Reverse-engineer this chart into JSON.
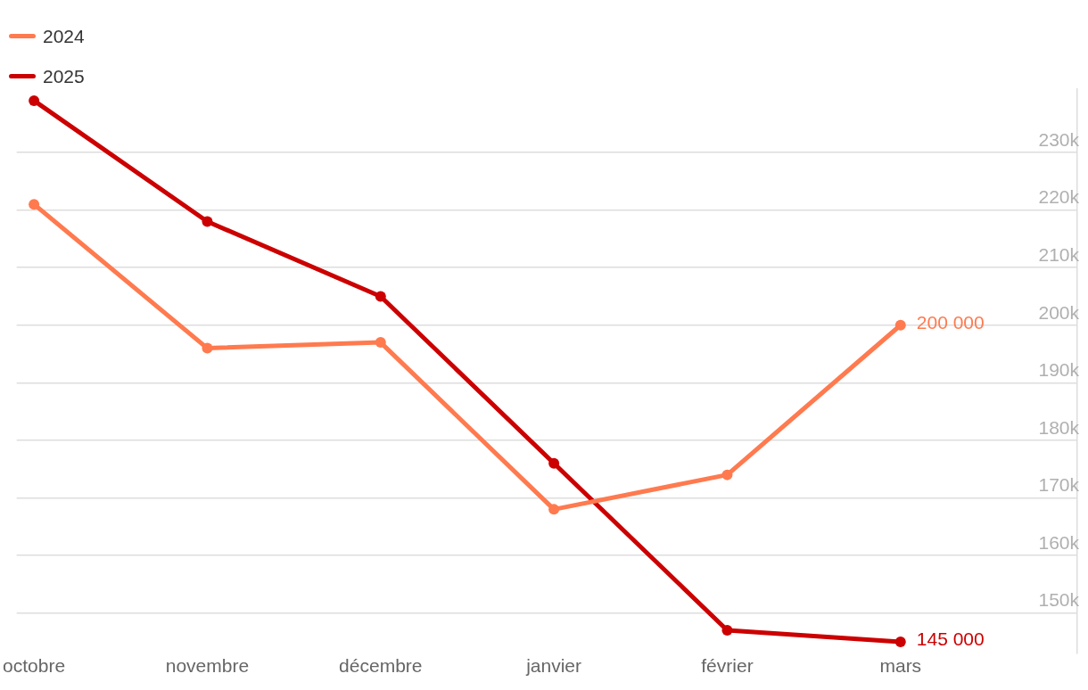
{
  "chart_data": {
    "type": "line",
    "categories": [
      "octobre",
      "novembre",
      "décembre",
      "janvier",
      "février",
      "mars"
    ],
    "series": [
      {
        "name": "2024",
        "color": "#ff7a4f",
        "values": [
          221000,
          196000,
          197000,
          168000,
          174000,
          200000
        ],
        "value_labels": [
          null,
          null,
          null,
          null,
          null,
          "200 000"
        ]
      },
      {
        "name": "2025",
        "color": "#cc0000",
        "values": [
          239000,
          218000,
          205000,
          176000,
          147000,
          145000
        ],
        "value_labels": [
          null,
          null,
          null,
          null,
          null,
          "145 000"
        ]
      }
    ],
    "ylim": [
      143000,
      241000
    ],
    "yticks": [
      {
        "value": 150000,
        "label": "150k"
      },
      {
        "value": 160000,
        "label": "160k"
      },
      {
        "value": 170000,
        "label": "170k"
      },
      {
        "value": 180000,
        "label": "180k"
      },
      {
        "value": 190000,
        "label": "190k"
      },
      {
        "value": 200000,
        "label": "200k"
      },
      {
        "value": 210000,
        "label": "210k"
      },
      {
        "value": 220000,
        "label": "220k"
      },
      {
        "value": 230000,
        "label": "230k"
      }
    ],
    "grid": "y",
    "legend": "top left",
    "marker": "circle",
    "line_style": "solid"
  }
}
